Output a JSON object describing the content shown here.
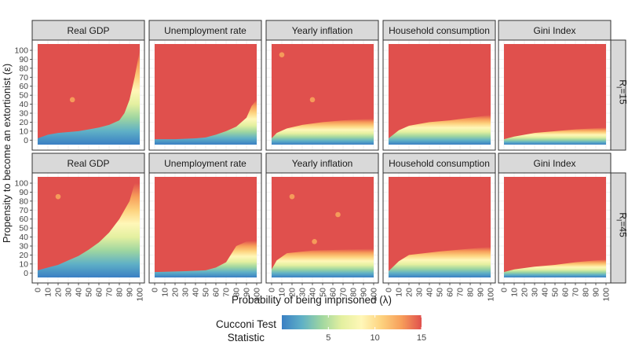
{
  "chart_data": {
    "type": "heatmap",
    "xlabel": "Probability of being imprisoned (λ)",
    "ylabel": "Propensity to become an extortionist (ε)",
    "x_ticks": [
      0,
      10,
      20,
      30,
      40,
      50,
      60,
      70,
      80,
      90,
      100
    ],
    "y_ticks": [
      0,
      10,
      20,
      30,
      40,
      50,
      60,
      70,
      80,
      90,
      100
    ],
    "xlim": [
      0,
      100
    ],
    "ylim": [
      0,
      100
    ],
    "columns": [
      "Real GDP",
      "Unemployment rate",
      "Yearly inflation",
      "Household consumption",
      "Gini Index"
    ],
    "rows": [
      {
        "label": "R",
        "subscript": "I",
        "suffix": "=15"
      },
      {
        "label": "R",
        "subscript": "I",
        "suffix": "=45"
      }
    ],
    "legend": {
      "title_line1": "Cucconi Test",
      "title_line2": "Statistic",
      "min": 0,
      "max": 15,
      "ticks": [
        5,
        10,
        15
      ],
      "colors": [
        "#3a7fc4",
        "#5fb0c6",
        "#9fd6a0",
        "#e4f0a0",
        "#fff7b8",
        "#fdd27e",
        "#f79e5a",
        "#e0504d"
      ]
    },
    "panels": [
      [
        {
          "base": 15,
          "boundary": [
            [
              0,
              2
            ],
            [
              10,
              6
            ],
            [
              20,
              8
            ],
            [
              30,
              9
            ],
            [
              40,
              10
            ],
            [
              50,
              12
            ],
            [
              60,
              14
            ],
            [
              70,
              17
            ],
            [
              80,
              22
            ],
            [
              85,
              30
            ],
            [
              90,
              45
            ],
            [
              95,
              70
            ],
            [
              100,
              100
            ]
          ],
          "points": [
            [
              34,
              45
            ]
          ]
        },
        {
          "base": 15,
          "boundary": [
            [
              0,
              1
            ],
            [
              20,
              1
            ],
            [
              40,
              2
            ],
            [
              50,
              3
            ],
            [
              60,
              6
            ],
            [
              70,
              10
            ],
            [
              80,
              15
            ],
            [
              90,
              25
            ],
            [
              95,
              38
            ],
            [
              100,
              45
            ]
          ],
          "points": []
        },
        {
          "base": 15,
          "boundary": [
            [
              0,
              2
            ],
            [
              5,
              8
            ],
            [
              15,
              13
            ],
            [
              30,
              17
            ],
            [
              50,
              20
            ],
            [
              70,
              22
            ],
            [
              100,
              24
            ]
          ],
          "points": [
            [
              10,
              95
            ],
            [
              40,
              45
            ]
          ]
        },
        {
          "base": 15,
          "boundary": [
            [
              0,
              2
            ],
            [
              10,
              11
            ],
            [
              20,
              16
            ],
            [
              40,
              20
            ],
            [
              60,
              22
            ],
            [
              80,
              25
            ],
            [
              100,
              28
            ]
          ],
          "points": []
        },
        {
          "base": 15,
          "boundary": [
            [
              0,
              1
            ],
            [
              10,
              4
            ],
            [
              30,
              8
            ],
            [
              50,
              10
            ],
            [
              70,
              12
            ],
            [
              100,
              14
            ]
          ],
          "points": []
        }
      ],
      [
        {
          "base": 15,
          "boundary": [
            [
              0,
              3
            ],
            [
              10,
              6
            ],
            [
              20,
              9
            ],
            [
              30,
              14
            ],
            [
              40,
              19
            ],
            [
              50,
              26
            ],
            [
              60,
              34
            ],
            [
              70,
              45
            ],
            [
              80,
              60
            ],
            [
              90,
              80
            ],
            [
              95,
              100
            ],
            [
              100,
              100
            ]
          ],
          "points": [
            [
              20,
              85
            ]
          ]
        },
        {
          "base": 15,
          "boundary": [
            [
              0,
              1
            ],
            [
              30,
              2
            ],
            [
              50,
              3
            ],
            [
              60,
              6
            ],
            [
              70,
              12
            ],
            [
              80,
              30
            ],
            [
              90,
              35
            ],
            [
              100,
              36
            ]
          ],
          "points": []
        },
        {
          "base": 15,
          "boundary": [
            [
              0,
              4
            ],
            [
              5,
              14
            ],
            [
              15,
              22
            ],
            [
              40,
              25
            ],
            [
              70,
              26
            ],
            [
              100,
              27
            ]
          ],
          "points": [
            [
              20,
              85
            ],
            [
              65,
              65
            ],
            [
              42,
              35
            ]
          ]
        },
        {
          "base": 15,
          "boundary": [
            [
              0,
              2
            ],
            [
              10,
              13
            ],
            [
              20,
              20
            ],
            [
              50,
              24
            ],
            [
              80,
              27
            ],
            [
              100,
              29
            ]
          ],
          "points": []
        },
        {
          "base": 15,
          "boundary": [
            [
              0,
              1
            ],
            [
              10,
              4
            ],
            [
              30,
              7
            ],
            [
              50,
              9
            ],
            [
              70,
              12
            ],
            [
              100,
              15
            ]
          ],
          "points": []
        }
      ]
    ]
  }
}
